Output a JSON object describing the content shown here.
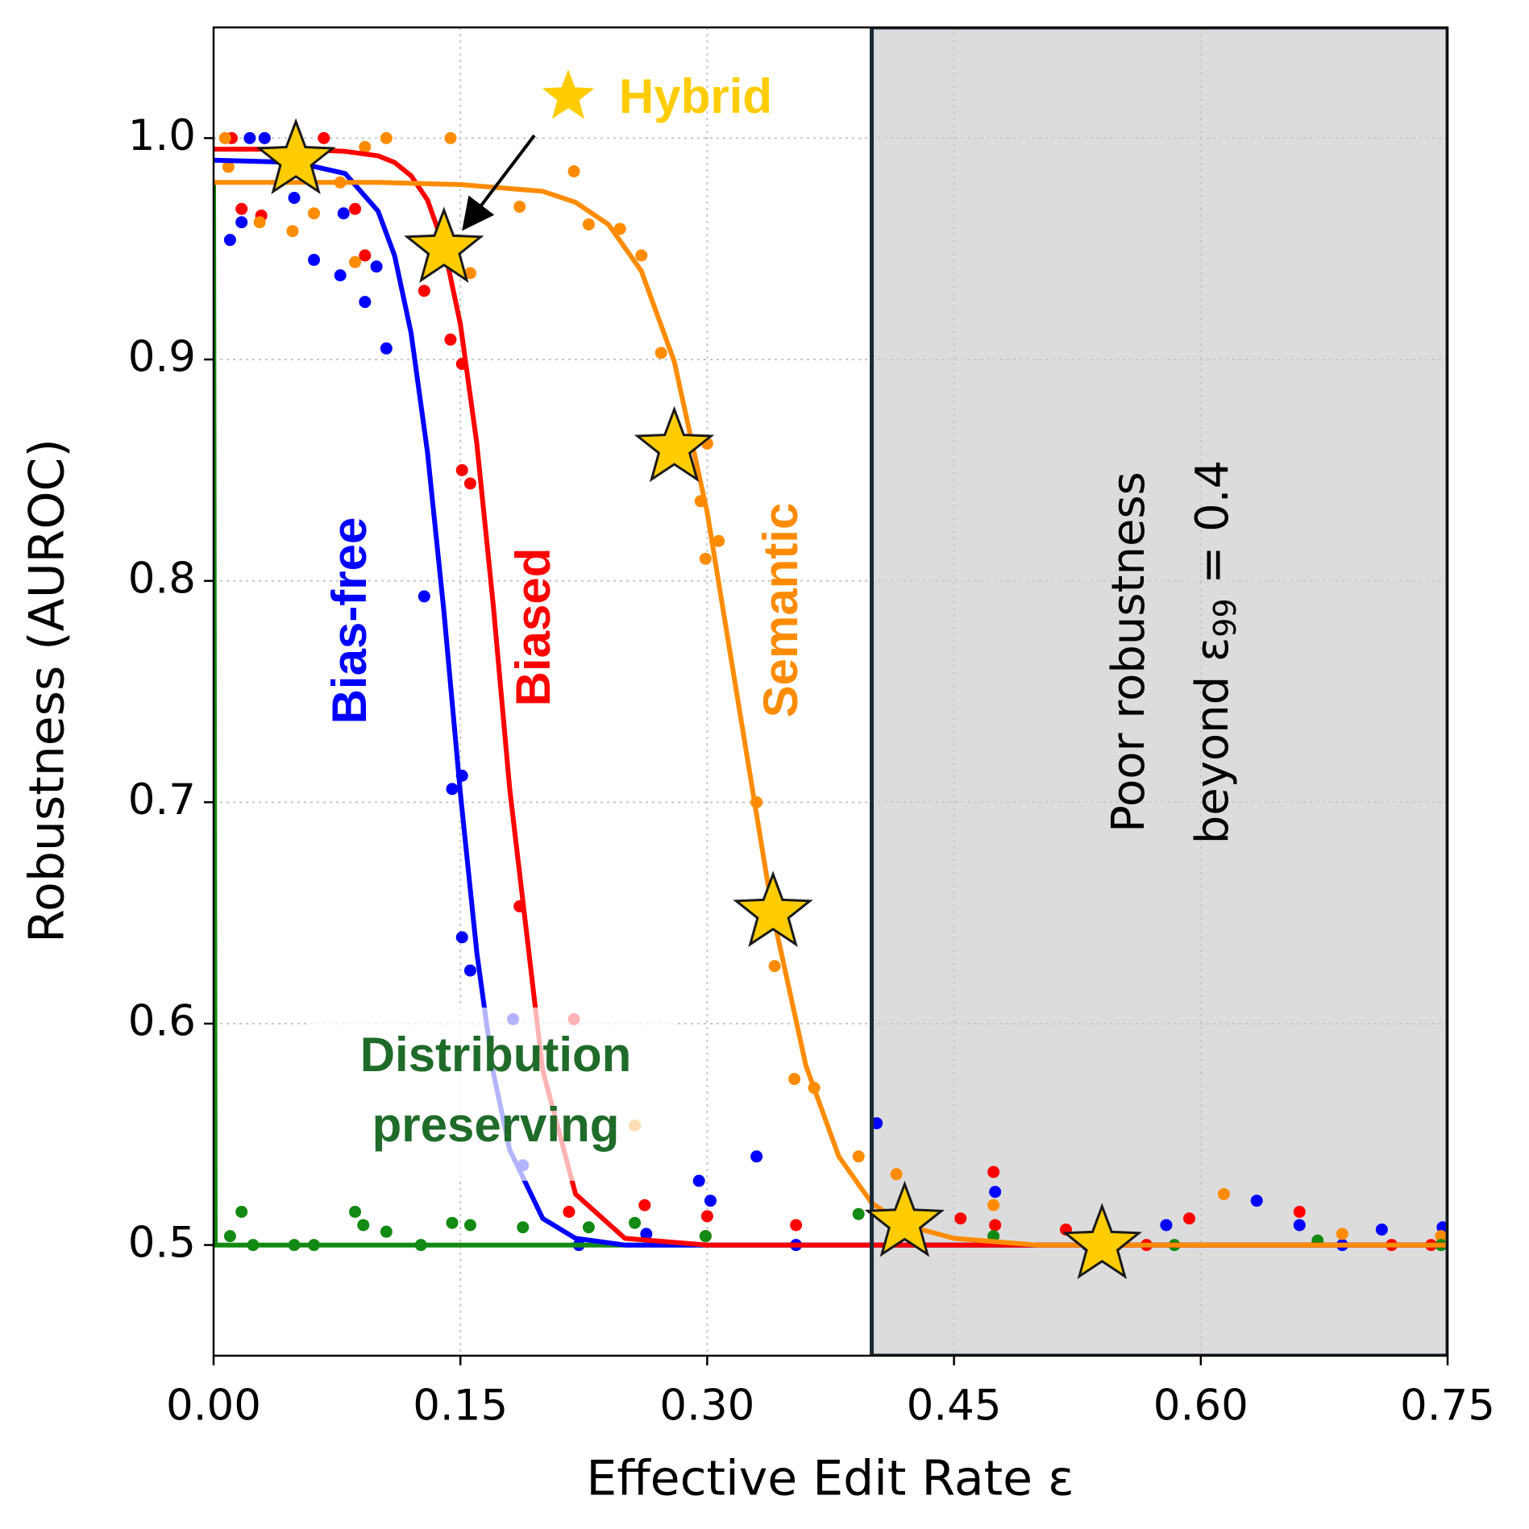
{
  "chart_data": {
    "type": "scatter",
    "xlabel": "Effective Edit Rate ε",
    "ylabel": "Robustness (AUROC)",
    "xlim": [
      0,
      0.75
    ],
    "ylim": [
      0.45,
      1.05
    ],
    "xticks": [
      {
        "value": 0,
        "label": "0.00"
      },
      {
        "value": 0.15,
        "label": "0.15"
      },
      {
        "value": 0.3,
        "label": "0.30"
      },
      {
        "value": 0.45,
        "label": "0.45"
      },
      {
        "value": 0.6,
        "label": "0.60"
      },
      {
        "value": 0.75,
        "label": "0.75"
      }
    ],
    "yticks": [
      0.5,
      0.6,
      0.7,
      0.8,
      0.9,
      {
        "value": 1.0,
        "label": "1.0"
      }
    ],
    "grid": true,
    "shaded_xrange": [
      0.4,
      0.75
    ],
    "shaded_color": "#dcdcdc",
    "annotation": {
      "line1": "Poor robustness",
      "line2": "beyond ε",
      "subscript": "99",
      "line2_end": " = 0.4"
    },
    "series": [
      {
        "name": "Bias-free",
        "color": "#0000ff",
        "x": [
          0.01,
          0.017,
          0.022,
          0.031,
          0.049,
          0.061,
          0.077,
          0.079,
          0.092,
          0.099,
          0.105,
          0.128,
          0.145,
          0.151,
          0.151,
          0.156,
          0.182,
          0.188,
          0.222,
          0.263,
          0.295,
          0.302,
          0.33,
          0.354,
          0.403,
          0.475,
          0.579,
          0.634,
          0.66,
          0.71,
          0.747,
          0.531,
          0.686
        ],
        "values": [
          0.954,
          0.962,
          1.0,
          1.0,
          0.973,
          0.945,
          0.938,
          0.966,
          0.926,
          0.942,
          0.905,
          0.793,
          0.706,
          0.712,
          0.639,
          0.624,
          0.602,
          0.536,
          0.5,
          0.505,
          0.529,
          0.52,
          0.54,
          0.5,
          0.555,
          0.524,
          0.509,
          0.52,
          0.509,
          0.507,
          0.508,
          0.5,
          0.5
        ],
        "fit_x": [
          0,
          0.05,
          0.08,
          0.1,
          0.11,
          0.12,
          0.13,
          0.14,
          0.15,
          0.16,
          0.17,
          0.18,
          0.2,
          0.22,
          0.25,
          0.3,
          0.4,
          0.5,
          0.6,
          0.75
        ],
        "fit_values": [
          0.99,
          0.989,
          0.984,
          0.967,
          0.947,
          0.912,
          0.858,
          0.786,
          0.704,
          0.632,
          0.578,
          0.543,
          0.512,
          0.503,
          0.5,
          0.5,
          0.5,
          0.5,
          0.5,
          0.5
        ]
      },
      {
        "name": "Biased",
        "color": "#ff0000",
        "x": [
          0.011,
          0.017,
          0.029,
          0.067,
          0.086,
          0.092,
          0.128,
          0.144,
          0.151,
          0.151,
          0.156,
          0.186,
          0.219,
          0.216,
          0.262,
          0.299,
          0.3,
          0.354,
          0.454,
          0.474,
          0.475,
          0.518,
          0.593,
          0.66,
          0.74,
          0.716,
          0.567
        ],
        "values": [
          1.0,
          0.968,
          0.965,
          1.0,
          0.968,
          0.947,
          0.931,
          0.909,
          0.898,
          0.85,
          0.844,
          0.653,
          0.602,
          0.515,
          0.518,
          0.504,
          0.513,
          0.509,
          0.512,
          0.533,
          0.509,
          0.507,
          0.512,
          0.515,
          0.5,
          0.5,
          0.5
        ],
        "fit_x": [
          0,
          0.05,
          0.08,
          0.1,
          0.11,
          0.12,
          0.13,
          0.14,
          0.15,
          0.16,
          0.17,
          0.18,
          0.2,
          0.22,
          0.25,
          0.3,
          0.4,
          0.5,
          0.6,
          0.75
        ],
        "fit_values": [
          0.995,
          0.995,
          0.994,
          0.992,
          0.989,
          0.983,
          0.972,
          0.951,
          0.916,
          0.862,
          0.789,
          0.706,
          0.579,
          0.523,
          0.503,
          0.5,
          0.5,
          0.5,
          0.5,
          0.5
        ]
      },
      {
        "name": "Semantic",
        "color": "#ff8c00",
        "x": [
          0.007,
          0.009,
          0.028,
          0.048,
          0.061,
          0.077,
          0.086,
          0.092,
          0.105,
          0.144,
          0.156,
          0.186,
          0.219,
          0.228,
          0.247,
          0.26,
          0.272,
          0.3,
          0.296,
          0.299,
          0.307,
          0.33,
          0.341,
          0.353,
          0.365,
          0.392,
          0.415,
          0.474,
          0.614,
          0.686,
          0.746,
          0.549,
          0.256
        ],
        "values": [
          1.0,
          0.987,
          0.962,
          0.958,
          0.966,
          0.98,
          0.944,
          0.996,
          1.0,
          1.0,
          0.939,
          0.969,
          0.985,
          0.961,
          0.959,
          0.947,
          0.903,
          0.862,
          0.836,
          0.81,
          0.818,
          0.7,
          0.626,
          0.575,
          0.571,
          0.54,
          0.532,
          0.518,
          0.523,
          0.505,
          0.504,
          0.5,
          0.554
        ],
        "fit_x": [
          0,
          0.05,
          0.1,
          0.15,
          0.2,
          0.22,
          0.24,
          0.26,
          0.28,
          0.3,
          0.32,
          0.34,
          0.36,
          0.38,
          0.4,
          0.42,
          0.45,
          0.5,
          0.6,
          0.75
        ],
        "fit_values": [
          0.98,
          0.98,
          0.98,
          0.979,
          0.976,
          0.971,
          0.961,
          0.94,
          0.899,
          0.831,
          0.74,
          0.649,
          0.581,
          0.54,
          0.519,
          0.509,
          0.503,
          0.5,
          0.5,
          0.5
        ]
      },
      {
        "name": [
          "Distribution",
          "preserving"
        ],
        "color": "#138a13",
        "label_color": "#1f6b29",
        "x": [
          0.01,
          0.017,
          0.024,
          0.049,
          0.086,
          0.091,
          0.105,
          0.145,
          0.156,
          0.188,
          0.228,
          0.256,
          0.299,
          0.392,
          0.474,
          0.584,
          0.671,
          0.746,
          0.061,
          0.126
        ],
        "values": [
          0.504,
          0.515,
          0.5,
          0.5,
          0.515,
          0.509,
          0.506,
          0.51,
          0.509,
          0.508,
          0.508,
          0.51,
          0.504,
          0.514,
          0.504,
          0.5,
          0.502,
          0.5,
          0.5,
          0.5
        ],
        "fit_x": [
          0,
          0.001,
          0.75
        ],
        "fit_values": [
          0.98,
          0.5,
          0.5
        ]
      },
      {
        "name": "Hybrid",
        "color": "#ffcc00",
        "marker": "star",
        "x": [
          0.05,
          0.14,
          0.28,
          0.34,
          0.42,
          0.54
        ],
        "values": [
          0.99,
          0.95,
          0.86,
          0.65,
          0.51,
          0.5
        ]
      }
    ]
  }
}
